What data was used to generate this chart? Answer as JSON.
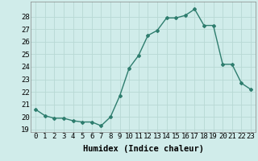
{
  "x": [
    0,
    1,
    2,
    3,
    4,
    5,
    6,
    7,
    8,
    9,
    10,
    11,
    12,
    13,
    14,
    15,
    16,
    17,
    18,
    19,
    20,
    21,
    22,
    23
  ],
  "y": [
    20.6,
    20.1,
    19.9,
    19.9,
    19.7,
    19.6,
    19.6,
    19.3,
    20.0,
    21.7,
    23.9,
    24.9,
    26.5,
    26.9,
    27.9,
    27.9,
    28.1,
    28.6,
    27.3,
    27.3,
    24.2,
    24.2,
    22.7,
    22.2
  ],
  "line_color": "#2e7d6e",
  "marker": "D",
  "marker_size": 2.0,
  "line_width": 1.0,
  "bg_color": "#d0ecea",
  "grid_color": "#b8d8d4",
  "xlabel": "Humidex (Indice chaleur)",
  "xlim": [
    -0.5,
    23.5
  ],
  "ylim": [
    18.8,
    29.2
  ],
  "yticks": [
    19,
    20,
    21,
    22,
    23,
    24,
    25,
    26,
    27,
    28
  ],
  "xticks": [
    0,
    1,
    2,
    3,
    4,
    5,
    6,
    7,
    8,
    9,
    10,
    11,
    12,
    13,
    14,
    15,
    16,
    17,
    18,
    19,
    20,
    21,
    22,
    23
  ],
  "xlabel_fontsize": 7.5,
  "tick_fontsize": 6.5
}
